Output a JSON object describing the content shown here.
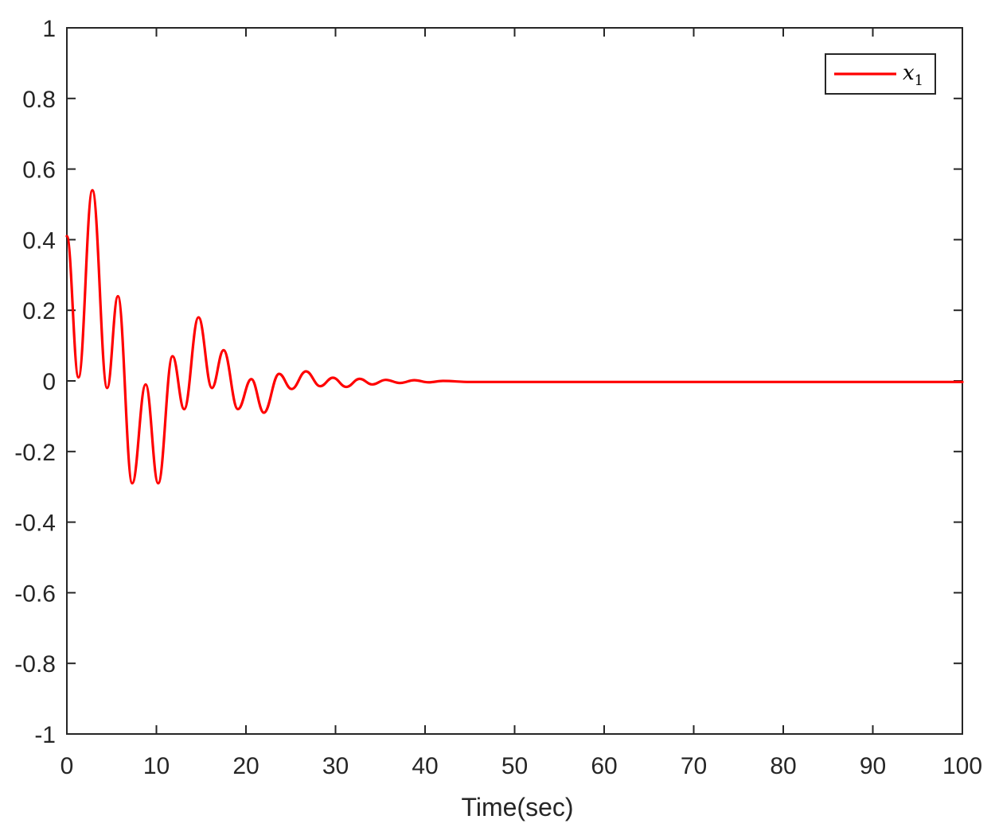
{
  "chart_data": {
    "type": "line",
    "title": "",
    "xlabel": "Time(sec)",
    "ylabel": "",
    "xlim": [
      0,
      100
    ],
    "ylim": [
      -1,
      1
    ],
    "xticks": [
      0,
      10,
      20,
      30,
      40,
      50,
      60,
      70,
      80,
      90,
      100
    ],
    "xtick_labels": [
      "0",
      "10",
      "20",
      "30",
      "40",
      "50",
      "60",
      "70",
      "80",
      "90",
      "100"
    ],
    "yticks": [
      1,
      0.8,
      0.6,
      0.4,
      0.2,
      0,
      -0.2,
      -0.4,
      -0.6,
      -0.8,
      -1
    ],
    "ytick_labels": [
      "1",
      "0.8",
      "0.6",
      "0.4",
      "0.2",
      "0",
      "-0.2",
      "-0.4",
      "-0.6",
      "-0.8",
      "-1"
    ],
    "grid": false,
    "legend_position": "upper right",
    "series": [
      {
        "name": "x_1",
        "label_main": "x",
        "label_sub": "1",
        "color": "#ff0000",
        "x": [
          0,
          1.3,
          2.85,
          4.5,
          5.7,
          7.3,
          8.8,
          10.2,
          11.8,
          13.1,
          14.7,
          16.2,
          17.5,
          19.1,
          20.6,
          22.0,
          23.7,
          25.1,
          26.7,
          28.3,
          29.7,
          31.2,
          32.7,
          34.1,
          35.6,
          37.2,
          38.8,
          40.4,
          42.0,
          45.0,
          50.0,
          60.0,
          100.0
        ],
        "y": [
          0.41,
          0.01,
          0.54,
          -0.02,
          0.24,
          -0.29,
          -0.01,
          -0.29,
          0.07,
          -0.08,
          0.18,
          -0.02,
          0.087,
          -0.08,
          0.005,
          -0.09,
          0.02,
          -0.023,
          0.027,
          -0.015,
          0.009,
          -0.017,
          0.006,
          -0.01,
          0.003,
          -0.006,
          0.002,
          -0.004,
          0.0,
          -0.003,
          -0.003,
          -0.003,
          -0.003
        ]
      }
    ]
  },
  "colors": {
    "axis": "#262626",
    "line": "#ff0000",
    "background": "#ffffff"
  }
}
